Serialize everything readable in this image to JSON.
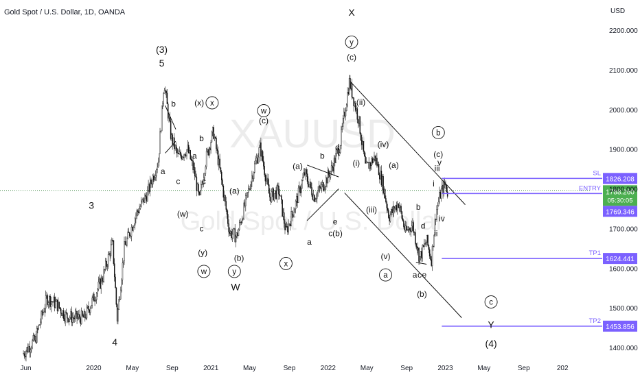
{
  "header": {
    "symbol_title": "Gold Spot / U.S. Dollar, 1D, OANDA",
    "currency": "USD"
  },
  "watermark": {
    "symbol": "XAUUSD",
    "name": "Gold Spot / U.S. Dollar"
  },
  "colors": {
    "candle": "#111111",
    "level_line": "#7b61ff",
    "entry_box": "#7b61ff",
    "price_box": "#4caf50",
    "current_price_line": "#2e7d32"
  },
  "chart_data": {
    "type": "candlestick",
    "x_tick_labels": [
      "Jun",
      "2020",
      "May",
      "Sep",
      "2021",
      "May",
      "Sep",
      "2022",
      "May",
      "Sep",
      "2023",
      "May",
      "Sep",
      "202"
    ],
    "y_tick_labels": [
      "2200.000",
      "2100.000",
      "2000.000",
      "1900.000",
      "1800.000",
      "1700.000",
      "1600.000",
      "1500.000",
      "1400.000"
    ],
    "ylim": [
      1390,
      2230
    ],
    "price_path": [
      [
        2019.4,
        1385
      ],
      [
        2019.5,
        1420
      ],
      [
        2019.6,
        1525
      ],
      [
        2019.68,
        1510
      ],
      [
        2019.76,
        1480
      ],
      [
        2019.83,
        1475
      ],
      [
        2019.92,
        1475
      ],
      [
        2020.0,
        1525
      ],
      [
        2020.08,
        1580
      ],
      [
        2020.16,
        1665
      ],
      [
        2020.2,
        1472
      ],
      [
        2020.26,
        1650
      ],
      [
        2020.36,
        1735
      ],
      [
        2020.46,
        1790
      ],
      [
        2020.55,
        1870
      ],
      [
        2020.6,
        2070
      ],
      [
        2020.66,
        1930
      ],
      [
        2020.72,
        1880
      ],
      [
        2020.8,
        1900
      ],
      [
        2020.86,
        1840
      ],
      [
        2020.9,
        1770
      ],
      [
        2020.96,
        1880
      ],
      [
        2021.02,
        1945
      ],
      [
        2021.08,
        1840
      ],
      [
        2021.16,
        1690
      ],
      [
        2021.22,
        1680
      ],
      [
        2021.3,
        1770
      ],
      [
        2021.36,
        1845
      ],
      [
        2021.42,
        1905
      ],
      [
        2021.5,
        1780
      ],
      [
        2021.58,
        1795
      ],
      [
        2021.64,
        1690
      ],
      [
        2021.72,
        1760
      ],
      [
        2021.8,
        1840
      ],
      [
        2021.88,
        1780
      ],
      [
        2021.96,
        1810
      ],
      [
        2022.03,
        1850
      ],
      [
        2022.1,
        1910
      ],
      [
        2022.18,
        2070
      ],
      [
        2022.26,
        1975
      ],
      [
        2022.32,
        1850
      ],
      [
        2022.4,
        1880
      ],
      [
        2022.46,
        1820
      ],
      [
        2022.52,
        1730
      ],
      [
        2022.6,
        1765
      ],
      [
        2022.66,
        1690
      ],
      [
        2022.72,
        1710
      ],
      [
        2022.78,
        1625
      ],
      [
        2022.84,
        1670
      ],
      [
        2022.88,
        1620
      ],
      [
        2022.92,
        1740
      ],
      [
        2022.96,
        1790
      ],
      [
        2023.0,
        1812
      ],
      [
        2023.02,
        1790
      ]
    ],
    "levels": [
      {
        "label": "SL",
        "value": "1826.208"
      },
      {
        "label": "ENTRY",
        "value": "1788.260"
      },
      {
        "label": "TP1",
        "value": "1624.441"
      },
      {
        "label": "TP2",
        "value": "1453.856"
      }
    ],
    "price_boxes": [
      {
        "value": "1788.260",
        "sub": "05:30:05"
      },
      {
        "value": "1769.346"
      }
    ],
    "wave_labels": [
      {
        "text": "(3)",
        "x": 2020.58,
        "y": 2143
      },
      {
        "text": "5",
        "x": 2020.58,
        "y": 2108
      },
      {
        "text": "3",
        "x": 2019.98,
        "y": 1750
      },
      {
        "text": "4",
        "x": 2020.18,
        "y": 1405
      },
      {
        "text": "b",
        "x": 2020.68,
        "y": 2007
      },
      {
        "text": "a",
        "x": 2020.59,
        "y": 1837
      },
      {
        "text": "(x)",
        "x": 2020.9,
        "y": 2010
      },
      {
        "text": "b",
        "x": 2020.92,
        "y": 1920
      },
      {
        "text": "a",
        "x": 2020.86,
        "y": 1876
      },
      {
        "text": "c",
        "x": 2020.72,
        "y": 1812
      },
      {
        "text": "c",
        "x": 2020.94,
        "y": 1812
      },
      {
        "text": "(w)",
        "x": 2020.76,
        "y": 1730
      },
      {
        "text": "c",
        "x": 2020.92,
        "y": 1693
      },
      {
        "text": "(y)",
        "x": 2020.93,
        "y": 1632
      },
      {
        "text": "(a)",
        "x": 2021.2,
        "y": 1788
      },
      {
        "text": "(b)",
        "x": 2021.24,
        "y": 1619
      },
      {
        "text": "W",
        "x": 2021.21,
        "y": 1544
      },
      {
        "text": "(c)",
        "x": 2021.45,
        "y": 1965
      },
      {
        "text": "(a)",
        "x": 2021.74,
        "y": 1850
      },
      {
        "text": "b",
        "x": 2021.95,
        "y": 1876
      },
      {
        "text": "d",
        "x": 2022.08,
        "y": 1898
      },
      {
        "text": "e",
        "x": 2022.06,
        "y": 1710
      },
      {
        "text": "c",
        "x": 2022.02,
        "y": 1681
      },
      {
        "text": "(b)",
        "x": 2022.08,
        "y": 1681
      },
      {
        "text": "a",
        "x": 2021.84,
        "y": 1659
      },
      {
        "text": "X",
        "x": 2022.2,
        "y": 2236
      },
      {
        "text": "(c)",
        "x": 2022.2,
        "y": 2125
      },
      {
        "text": "(ii)",
        "x": 2022.28,
        "y": 2012
      },
      {
        "text": "(i)",
        "x": 2022.24,
        "y": 1858
      },
      {
        "text": "(iv)",
        "x": 2022.47,
        "y": 1905
      },
      {
        "text": "(iii)",
        "x": 2022.37,
        "y": 1740
      },
      {
        "text": "(a)",
        "x": 2022.56,
        "y": 1853
      },
      {
        "text": "(v)",
        "x": 2022.49,
        "y": 1623
      },
      {
        "text": "b",
        "x": 2022.77,
        "y": 1747
      },
      {
        "text": "d",
        "x": 2022.81,
        "y": 1700
      },
      {
        "text": "a",
        "x": 2022.74,
        "y": 1576
      },
      {
        "text": "c",
        "x": 2022.78,
        "y": 1576
      },
      {
        "text": "e",
        "x": 2022.82,
        "y": 1576
      },
      {
        "text": "(b)",
        "x": 2022.8,
        "y": 1528
      },
      {
        "text": "(c)",
        "x": 2022.94,
        "y": 1880
      },
      {
        "text": "v",
        "x": 2022.95,
        "y": 1860
      },
      {
        "text": "iii",
        "x": 2022.93,
        "y": 1845
      },
      {
        "text": "i",
        "x": 2022.9,
        "y": 1806
      },
      {
        "text": "iv",
        "x": 2022.97,
        "y": 1718
      },
      {
        "text": "ii",
        "x": 2022.92,
        "y": 1681
      },
      {
        "text": "Y",
        "x": 2023.39,
        "y": 1449
      },
      {
        "text": "(4)",
        "x": 2023.39,
        "y": 1402
      }
    ],
    "circled_labels": [
      {
        "text": "x",
        "x": 2021.01,
        "y": 2010
      },
      {
        "text": "w",
        "x": 2021.45,
        "y": 1990
      },
      {
        "text": "w",
        "x": 2020.94,
        "y": 1585
      },
      {
        "text": "y",
        "x": 2021.2,
        "y": 1585
      },
      {
        "text": "x",
        "x": 2021.64,
        "y": 1605
      },
      {
        "text": "y",
        "x": 2022.2,
        "y": 2163
      },
      {
        "text": "a",
        "x": 2022.49,
        "y": 1576
      },
      {
        "text": "b",
        "x": 2022.94,
        "y": 1935
      },
      {
        "text": "c",
        "x": 2023.39,
        "y": 1508
      }
    ],
    "trendlines": [
      [
        2020.61,
        2010,
        2020.7,
        1950
      ],
      [
        2020.61,
        1890,
        2020.7,
        1920
      ],
      [
        2021.82,
        1860,
        2022.09,
        1830
      ],
      [
        2021.82,
        1720,
        2022.09,
        1800
      ],
      [
        2022.19,
        2070,
        2023.17,
        1760
      ],
      [
        2022.14,
        1790,
        2023.14,
        1475
      ],
      [
        2022.75,
        1615,
        2022.84,
        1610
      ]
    ]
  }
}
